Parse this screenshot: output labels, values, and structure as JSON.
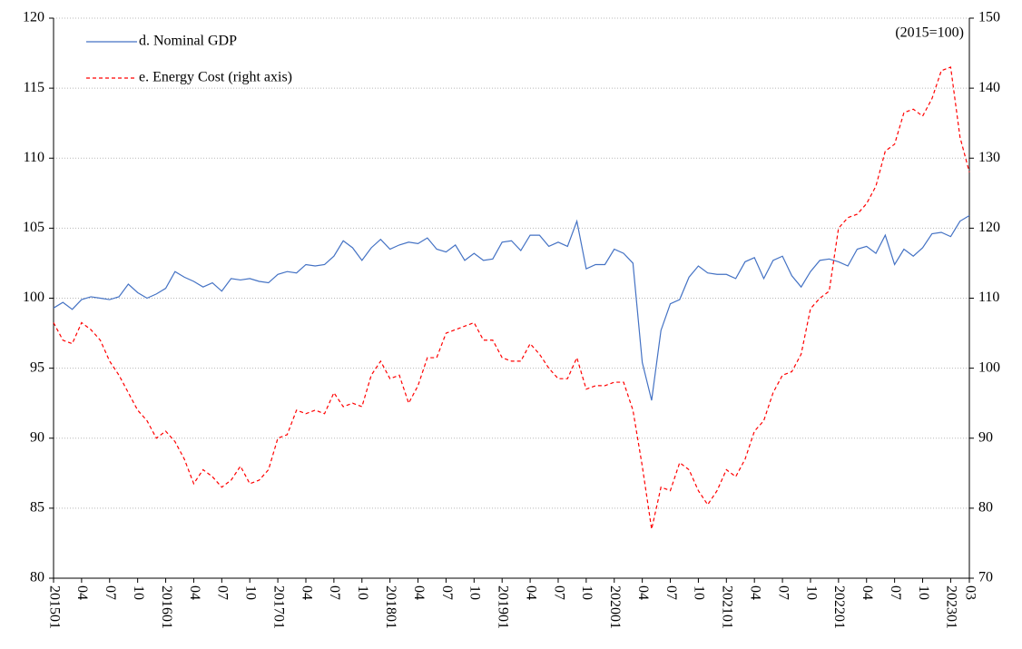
{
  "chart_data": {
    "type": "line",
    "annotation": "(2015=100)",
    "categories": [
      "201501",
      null,
      null,
      "04",
      null,
      null,
      "07",
      null,
      null,
      "10",
      null,
      null,
      "201601",
      null,
      null,
      "04",
      null,
      null,
      "07",
      null,
      null,
      "10",
      null,
      null,
      "201701",
      null,
      null,
      "04",
      null,
      null,
      "07",
      null,
      null,
      "10",
      null,
      null,
      "201801",
      null,
      null,
      "04",
      null,
      null,
      "07",
      null,
      null,
      "10",
      null,
      null,
      "201901",
      null,
      null,
      "04",
      null,
      null,
      "07",
      null,
      null,
      "10",
      null,
      null,
      "202001",
      null,
      null,
      "04",
      null,
      null,
      "07",
      null,
      null,
      "10",
      null,
      null,
      "202101",
      null,
      null,
      "04",
      null,
      null,
      "07",
      null,
      null,
      "10",
      null,
      null,
      "202201",
      null,
      null,
      "04",
      null,
      null,
      "07",
      null,
      null,
      "10",
      null,
      null,
      "202301",
      null,
      "03"
    ],
    "series": [
      {
        "name": "d. Nominal GDP",
        "color": "#4472c4",
        "line_style": "solid",
        "axis": "y",
        "values": [
          99.3,
          99.7,
          99.2,
          99.9,
          100.1,
          100.0,
          99.9,
          100.1,
          101.0,
          100.4,
          100.0,
          100.3,
          100.7,
          101.9,
          101.5,
          101.2,
          100.8,
          101.1,
          100.5,
          101.4,
          101.3,
          101.4,
          101.2,
          101.1,
          101.7,
          101.9,
          101.8,
          102.4,
          102.3,
          102.4,
          103.0,
          104.1,
          103.6,
          102.7,
          103.6,
          104.2,
          103.5,
          103.8,
          104.0,
          103.9,
          104.3,
          103.5,
          103.3,
          103.8,
          102.7,
          103.2,
          102.7,
          102.8,
          104.0,
          104.1,
          103.4,
          104.5,
          104.5,
          103.7,
          104.0,
          103.7,
          105.5,
          102.1,
          102.4,
          102.4,
          103.5,
          103.2,
          102.5,
          95.4,
          92.7,
          97.7,
          99.6,
          99.9,
          101.5,
          102.3,
          101.8,
          101.7,
          101.7,
          101.4,
          102.6,
          102.9,
          101.4,
          102.7,
          103.0,
          101.6,
          100.8,
          101.9,
          102.7,
          102.8,
          102.6,
          102.3,
          103.5,
          103.7,
          103.2,
          104.5,
          102.4,
          103.5,
          103.0,
          103.6,
          104.6,
          104.7,
          104.4,
          105.5,
          105.9
        ]
      },
      {
        "name": "e. Energy Cost (right axis)",
        "color": "#ff0000",
        "line_style": "dashed",
        "axis": "y2",
        "values": [
          106.5,
          104,
          103.5,
          106.5,
          105.5,
          104,
          101,
          99,
          96.5,
          94,
          92.5,
          90,
          91,
          89.5,
          87,
          83.5,
          85.5,
          84.5,
          83,
          84,
          86,
          83.5,
          84,
          85.5,
          90,
          90.5,
          94,
          93.5,
          94,
          93.5,
          96.5,
          94.5,
          95,
          94.5,
          99,
          101,
          98.5,
          99,
          95,
          97.5,
          101.5,
          101.5,
          105,
          105.5,
          106,
          106.5,
          104,
          104,
          101.5,
          101,
          101,
          103.5,
          102,
          100,
          98.5,
          98.5,
          101.5,
          97,
          97.5,
          97.5,
          98,
          98,
          94,
          86,
          77,
          83,
          82.5,
          86.5,
          85.5,
          82.5,
          80.5,
          82.5,
          85.5,
          84.5,
          87,
          91,
          92.5,
          96.5,
          99,
          99.5,
          102,
          108.5,
          110,
          111,
          120,
          121.5,
          122,
          123.5,
          126,
          131,
          132,
          136.5,
          137,
          136,
          138.5,
          142.5,
          143,
          133,
          128
        ]
      }
    ],
    "ylim": [
      80,
      120
    ],
    "yticks": [
      80,
      85,
      90,
      95,
      100,
      105,
      110,
      115,
      120
    ],
    "y2lim": [
      70,
      150
    ],
    "y2ticks": [
      70,
      80,
      90,
      100,
      110,
      120,
      130,
      140,
      150
    ],
    "grid": true,
    "legend": "upper left"
  }
}
